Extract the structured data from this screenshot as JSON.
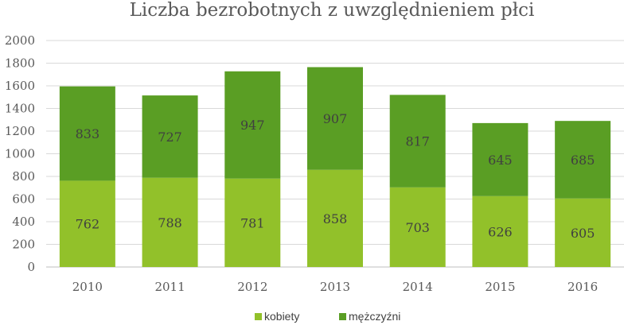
{
  "chart_data": {
    "type": "bar",
    "stacked": true,
    "title": "Liczba bezrobotnych z uwzględnieniem płci",
    "xlabel": "",
    "ylabel": "",
    "categories": [
      "2010",
      "2011",
      "2012",
      "2013",
      "2014",
      "2015",
      "2016"
    ],
    "series": [
      {
        "name": "kobiety",
        "color": "#92c12a",
        "values": [
          762,
          788,
          781,
          858,
          703,
          626,
          605
        ]
      },
      {
        "name": "mężczyźni",
        "color": "#5a9e24",
        "values": [
          833,
          727,
          947,
          907,
          817,
          645,
          685
        ]
      }
    ],
    "ylim": [
      0,
      2000
    ],
    "yticks": [
      0,
      200,
      400,
      600,
      800,
      1000,
      1200,
      1400,
      1600,
      1800,
      2000
    ],
    "grid": true,
    "legend": "bottom"
  }
}
